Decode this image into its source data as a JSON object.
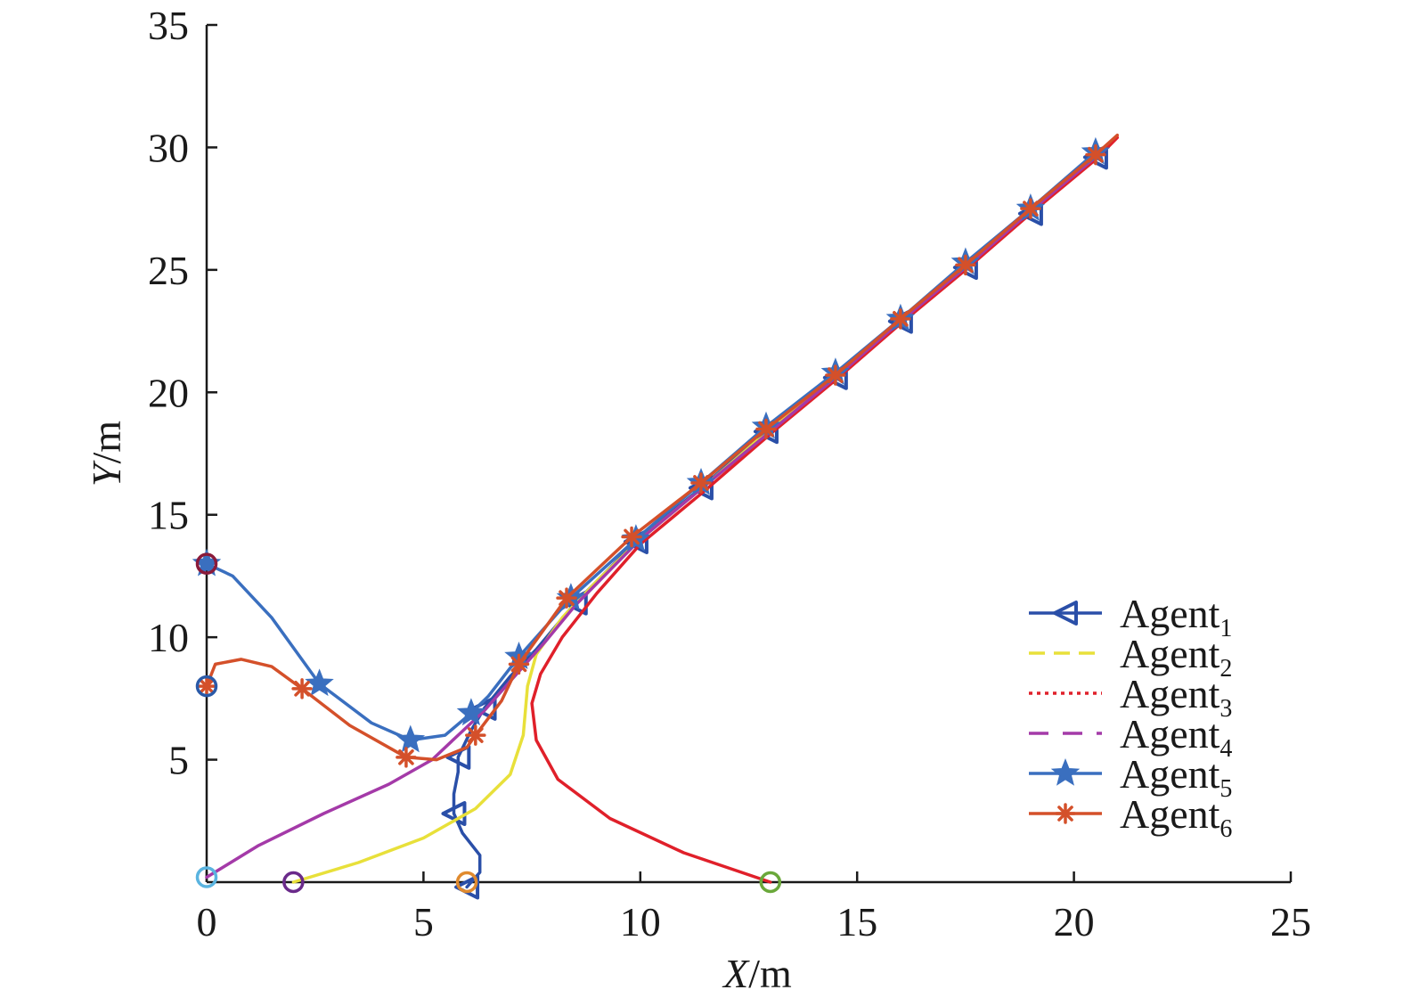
{
  "chart_data": {
    "type": "line",
    "xlabel": {
      "var": "X",
      "unit": "/m"
    },
    "ylabel": {
      "var": "Y",
      "unit": "/m"
    },
    "xlim": [
      0,
      25
    ],
    "ylim": [
      0,
      35
    ],
    "xticks": [
      0,
      5,
      10,
      15,
      20,
      25
    ],
    "yticks": [
      5,
      10,
      15,
      20,
      25,
      30,
      35
    ],
    "grid": false,
    "legend_position": "bottom-right",
    "series": [
      {
        "name": "Agent",
        "sub": "1",
        "color": "#2a4fa8",
        "dash": "",
        "marker": "triangle-left",
        "points": [
          [
            6.0,
            -0.2
          ],
          [
            6.3,
            0.4
          ],
          [
            6.3,
            1.1
          ],
          [
            5.9,
            2.0
          ],
          [
            5.7,
            2.8
          ],
          [
            5.7,
            3.6
          ],
          [
            5.8,
            4.5
          ],
          [
            5.8,
            5.1
          ],
          [
            6.1,
            6.2
          ],
          [
            6.4,
            7.1
          ],
          [
            7.0,
            8.4
          ],
          [
            7.6,
            9.5
          ],
          [
            8.5,
            11.4
          ],
          [
            9.9,
            13.9
          ],
          [
            11.4,
            16.1
          ],
          [
            12.9,
            18.4
          ],
          [
            14.5,
            20.6
          ],
          [
            16.0,
            22.9
          ],
          [
            17.5,
            25.1
          ],
          [
            19.0,
            27.3
          ],
          [
            20.5,
            29.6
          ]
        ],
        "marker_points": [
          [
            6.0,
            -0.2
          ],
          [
            5.7,
            2.8
          ],
          [
            5.8,
            5.1
          ],
          [
            6.4,
            7.1
          ],
          [
            8.5,
            11.4
          ],
          [
            9.9,
            13.9
          ],
          [
            11.4,
            16.1
          ],
          [
            12.9,
            18.4
          ],
          [
            14.5,
            20.6
          ],
          [
            16.0,
            22.9
          ],
          [
            17.5,
            25.1
          ],
          [
            19.0,
            27.3
          ],
          [
            20.5,
            29.6
          ]
        ],
        "start": [
          6.0,
          0.0
        ],
        "start_color": "#e08a2e"
      },
      {
        "name": "Agent",
        "sub": "2",
        "color": "#e8e03a",
        "dash": "",
        "marker": "none",
        "points": [
          [
            2.0,
            0.0
          ],
          [
            3.5,
            0.8
          ],
          [
            5.0,
            1.8
          ],
          [
            6.2,
            3.0
          ],
          [
            7.0,
            4.4
          ],
          [
            7.3,
            6.0
          ],
          [
            7.4,
            8.0
          ],
          [
            7.6,
            9.3
          ],
          [
            8.2,
            10.8
          ],
          [
            9.0,
            12.3
          ],
          [
            10.0,
            14.0
          ],
          [
            11.5,
            16.2
          ],
          [
            13.0,
            18.5
          ],
          [
            14.5,
            20.7
          ],
          [
            16.0,
            22.9
          ],
          [
            17.5,
            25.2
          ],
          [
            19.0,
            27.4
          ],
          [
            20.5,
            29.7
          ]
        ],
        "start": [
          2.0,
          0.0
        ],
        "start_color": "#6a2a8a"
      },
      {
        "name": "Agent",
        "sub": "3",
        "color": "#e0202a",
        "dash": "",
        "marker": "none",
        "points": [
          [
            13.0,
            0.0
          ],
          [
            11.0,
            1.2
          ],
          [
            9.3,
            2.6
          ],
          [
            8.1,
            4.2
          ],
          [
            7.6,
            5.8
          ],
          [
            7.5,
            7.3
          ],
          [
            7.7,
            8.5
          ],
          [
            8.2,
            10.0
          ],
          [
            9.0,
            11.8
          ],
          [
            10.0,
            13.8
          ],
          [
            11.5,
            16.0
          ],
          [
            13.0,
            18.3
          ],
          [
            14.5,
            20.5
          ],
          [
            16.0,
            22.8
          ],
          [
            17.5,
            25.0
          ],
          [
            19.0,
            27.3
          ],
          [
            20.5,
            29.5
          ],
          [
            21.0,
            30.4
          ]
        ],
        "start": [
          13.0,
          0.0
        ],
        "start_color": "#6aa83a"
      },
      {
        "name": "Agent",
        "sub": "4",
        "color": "#a43aa8",
        "dash": "",
        "marker": "none",
        "points": [
          [
            0.0,
            0.2
          ],
          [
            1.2,
            1.5
          ],
          [
            2.7,
            2.8
          ],
          [
            4.2,
            4.0
          ],
          [
            5.2,
            5.0
          ],
          [
            5.8,
            6.0
          ],
          [
            6.4,
            7.0
          ],
          [
            7.1,
            8.4
          ],
          [
            7.8,
            9.8
          ],
          [
            8.5,
            11.3
          ],
          [
            10.0,
            14.0
          ],
          [
            11.5,
            16.2
          ],
          [
            13.0,
            18.4
          ],
          [
            14.5,
            20.6
          ],
          [
            16.0,
            22.9
          ],
          [
            17.5,
            25.1
          ],
          [
            19.0,
            27.4
          ],
          [
            20.5,
            29.6
          ]
        ],
        "start": [
          0.0,
          0.2
        ],
        "start_color": "#5ab4e0"
      },
      {
        "name": "Agent",
        "sub": "5",
        "color": "#3a6fbf",
        "dash": "",
        "marker": "star",
        "points": [
          [
            0.0,
            13.0
          ],
          [
            0.6,
            12.5
          ],
          [
            1.5,
            10.8
          ],
          [
            2.6,
            8.1
          ],
          [
            3.8,
            6.5
          ],
          [
            4.7,
            5.8
          ],
          [
            5.5,
            6.0
          ],
          [
            6.1,
            6.9
          ],
          [
            6.5,
            7.6
          ],
          [
            7.2,
            9.2
          ],
          [
            8.4,
            11.6
          ],
          [
            9.9,
            14.0
          ],
          [
            11.4,
            16.3
          ],
          [
            12.9,
            18.6
          ],
          [
            14.5,
            20.8
          ],
          [
            16.0,
            23.0
          ],
          [
            17.5,
            25.3
          ],
          [
            19.0,
            27.5
          ],
          [
            20.5,
            29.8
          ]
        ],
        "marker_points": [
          [
            0.0,
            13.0
          ],
          [
            2.6,
            8.1
          ],
          [
            4.7,
            5.8
          ],
          [
            6.1,
            6.9
          ],
          [
            7.2,
            9.2
          ],
          [
            8.4,
            11.6
          ],
          [
            9.9,
            14.0
          ],
          [
            11.4,
            16.3
          ],
          [
            12.9,
            18.6
          ],
          [
            14.5,
            20.8
          ],
          [
            16.0,
            23.0
          ],
          [
            17.5,
            25.3
          ],
          [
            19.0,
            27.5
          ],
          [
            20.5,
            29.8
          ]
        ],
        "start": [
          0.0,
          13.0
        ],
        "start_color": "#8a1a3a"
      },
      {
        "name": "Agent",
        "sub": "6",
        "color": "#d4502a",
        "dash": "",
        "marker": "asterisk",
        "points": [
          [
            0.0,
            8.0
          ],
          [
            0.2,
            8.9
          ],
          [
            0.8,
            9.1
          ],
          [
            1.5,
            8.8
          ],
          [
            2.2,
            7.9
          ],
          [
            3.3,
            6.4
          ],
          [
            4.6,
            5.1
          ],
          [
            5.3,
            5.0
          ],
          [
            6.0,
            5.5
          ],
          [
            6.2,
            6.0
          ],
          [
            6.8,
            7.4
          ],
          [
            7.2,
            8.9
          ],
          [
            8.3,
            11.6
          ],
          [
            9.8,
            14.1
          ],
          [
            11.4,
            16.3
          ],
          [
            12.9,
            18.5
          ],
          [
            14.5,
            20.7
          ],
          [
            16.0,
            23.0
          ],
          [
            17.5,
            25.2
          ],
          [
            19.0,
            27.5
          ],
          [
            20.5,
            29.7
          ],
          [
            21.0,
            30.5
          ]
        ],
        "marker_points": [
          [
            0.0,
            8.0
          ],
          [
            2.2,
            7.9
          ],
          [
            4.6,
            5.1
          ],
          [
            6.2,
            6.0
          ],
          [
            7.2,
            8.9
          ],
          [
            8.3,
            11.6
          ],
          [
            9.8,
            14.1
          ],
          [
            11.4,
            16.3
          ],
          [
            12.9,
            18.5
          ],
          [
            14.5,
            20.7
          ],
          [
            16.0,
            23.0
          ],
          [
            17.5,
            25.2
          ],
          [
            19.0,
            27.5
          ],
          [
            20.5,
            29.7
          ]
        ],
        "start": [
          0.0,
          8.0
        ],
        "start_color": "#2a5aa8"
      }
    ],
    "legend_styles": [
      {
        "color": "#2a4fa8",
        "dash": "",
        "marker": "triangle-left"
      },
      {
        "color": "#e8e03a",
        "dash": "18 10",
        "marker": "none"
      },
      {
        "color": "#e0202a",
        "dash": "4 5",
        "marker": "none"
      },
      {
        "color": "#a43aa8",
        "dash": "22 16",
        "marker": "none"
      },
      {
        "color": "#3a6fbf",
        "dash": "",
        "marker": "star"
      },
      {
        "color": "#d4502a",
        "dash": "",
        "marker": "asterisk"
      }
    ]
  }
}
